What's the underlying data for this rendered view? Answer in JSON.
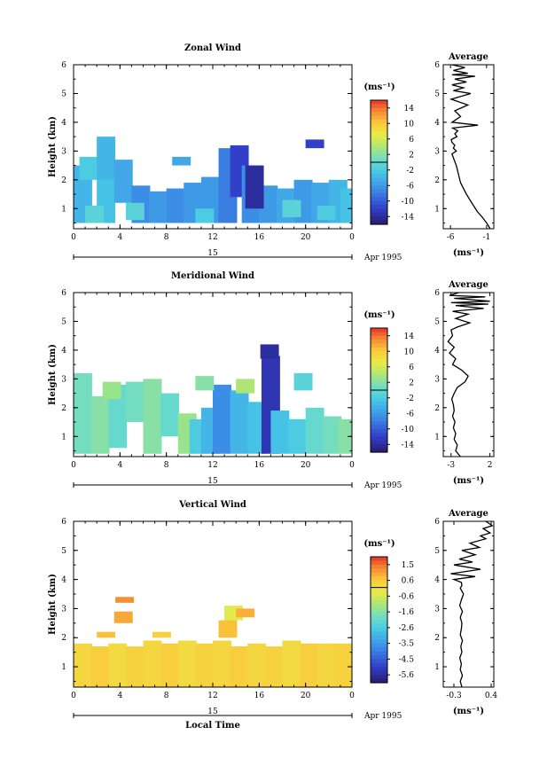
{
  "chart_data": [
    {
      "type": "heatmap",
      "title": "Zonal Wind",
      "ylabel": "Height (km)",
      "x_ticks": [
        "0",
        "4",
        "8",
        "12",
        "16",
        "20",
        "0"
      ],
      "y_ticks": [
        "1",
        "2",
        "3",
        "4",
        "5",
        "6"
      ],
      "xlim": [
        0,
        24
      ],
      "ylim": [
        0.3,
        6.0
      ],
      "date_label": "15",
      "date_suffix": "Apr 1995",
      "colorbar": {
        "unit": "(ms⁻¹)",
        "ticks": [
          "14",
          "10",
          "6",
          "2",
          "-2",
          "-6",
          "-10",
          "-14"
        ],
        "range": [
          -16,
          16
        ]
      },
      "cells": [
        [
          0,
          0.5,
          2.0,
          -4
        ],
        [
          2,
          0.5,
          1.8,
          -3
        ],
        [
          0.5,
          2.0,
          0.8,
          -2
        ],
        [
          2,
          2.0,
          1.5,
          -4
        ],
        [
          3.5,
          1.2,
          1.5,
          -5
        ],
        [
          5,
          0.5,
          1.3,
          -7
        ],
        [
          6.5,
          0.5,
          1.1,
          -6
        ],
        [
          8,
          0.5,
          1.2,
          -7
        ],
        [
          9.5,
          0.5,
          1.4,
          -6
        ],
        [
          11,
          0.5,
          1.6,
          -6
        ],
        [
          12.5,
          0.5,
          2.6,
          -8
        ],
        [
          13.5,
          1.4,
          1.8,
          -12
        ],
        [
          14.5,
          0.5,
          2.0,
          -7
        ],
        [
          16,
          0.5,
          1.3,
          -6
        ],
        [
          17.5,
          0.5,
          1.2,
          -5
        ],
        [
          19,
          0.5,
          1.5,
          -6
        ],
        [
          20.5,
          0.5,
          1.4,
          -5
        ],
        [
          22,
          0.5,
          1.5,
          -4
        ],
        [
          23,
          0.5,
          1.2,
          -3
        ],
        [
          1,
          0.5,
          0.6,
          -1
        ],
        [
          4.5,
          0.6,
          0.6,
          -1
        ],
        [
          10.5,
          0.5,
          0.5,
          -2
        ],
        [
          18,
          0.7,
          0.6,
          -1
        ],
        [
          21,
          0.6,
          0.5,
          -2
        ],
        [
          20,
          3.1,
          0.3,
          -12
        ],
        [
          8.5,
          2.5,
          0.3,
          -5
        ],
        [
          14.8,
          1.0,
          1.5,
          -14
        ]
      ],
      "profile": {
        "title": "Average",
        "xlabel": "(ms⁻¹)",
        "x_ticks": [
          "-6",
          "-1"
        ],
        "xlim": [
          -7,
          0
        ],
        "y_ticks": [
          "1",
          "2",
          "3",
          "4",
          "5",
          "6"
        ],
        "ylim": [
          0.3,
          6.0
        ],
        "x": [
          -0.5,
          -1.0,
          -1.6,
          -2.3,
          -2.8,
          -3.3,
          -3.8,
          -4.2,
          -4.6,
          -4.8,
          -5.0,
          -5.2,
          -5.5,
          -5.8,
          -5.2,
          -5.6,
          -5.4,
          -5.8,
          -5.9,
          -5.1,
          -5.4,
          -5.0,
          -5.7,
          -2.2,
          -5.8,
          -4.6,
          -5.4,
          -3.6,
          -5.9,
          -3.2,
          -5.6,
          -4.2,
          -5.8,
          -3.8,
          -5.4,
          -2.6,
          -5.8,
          -3.6,
          -5.6,
          -4.0,
          -5.8
        ],
        "y": [
          0.3,
          0.5,
          0.7,
          0.9,
          1.1,
          1.3,
          1.5,
          1.7,
          1.9,
          2.1,
          2.3,
          2.5,
          2.7,
          2.9,
          3.0,
          3.1,
          3.2,
          3.3,
          3.4,
          3.5,
          3.6,
          3.7,
          3.8,
          3.9,
          4.0,
          4.2,
          4.4,
          4.6,
          4.8,
          5.0,
          5.1,
          5.2,
          5.3,
          5.4,
          5.5,
          5.6,
          5.65,
          5.7,
          5.8,
          5.9,
          6.0
        ]
      }
    },
    {
      "type": "heatmap",
      "title": "Meridional Wind",
      "ylabel": "Height (km)",
      "x_ticks": [
        "0",
        "4",
        "8",
        "12",
        "16",
        "20",
        "0"
      ],
      "y_ticks": [
        "1",
        "2",
        "3",
        "4",
        "5",
        "6"
      ],
      "xlim": [
        0,
        24
      ],
      "ylim": [
        0.3,
        6.0
      ],
      "date_label": "15",
      "date_suffix": "Apr 1995",
      "colorbar": {
        "unit": "(ms⁻¹)",
        "ticks": [
          "14",
          "10",
          "6",
          "2",
          "-2",
          "-6",
          "-10",
          "-14"
        ],
        "range": [
          -16,
          16
        ]
      },
      "cells": [
        [
          0,
          0.4,
          2.8,
          1
        ],
        [
          1.5,
          0.4,
          2.0,
          2
        ],
        [
          3,
          0.6,
          2.2,
          0
        ],
        [
          4.5,
          1.5,
          1.4,
          1
        ],
        [
          6,
          0.4,
          2.6,
          2
        ],
        [
          7.5,
          1.0,
          1.5,
          0
        ],
        [
          9,
          0.4,
          1.4,
          3
        ],
        [
          10,
          0.4,
          1.2,
          -2
        ],
        [
          11,
          0.4,
          1.6,
          -4
        ],
        [
          12,
          0.4,
          2.4,
          -7
        ],
        [
          13.5,
          0.4,
          2.2,
          -4
        ],
        [
          15,
          0.4,
          1.8,
          -3
        ],
        [
          16.2,
          0.4,
          3.4,
          -13
        ],
        [
          17,
          0.4,
          1.5,
          -3
        ],
        [
          18.5,
          0.4,
          1.2,
          -2
        ],
        [
          20,
          0.4,
          1.6,
          0
        ],
        [
          21.5,
          0.4,
          1.3,
          1
        ],
        [
          22.8,
          0.4,
          1.2,
          2
        ],
        [
          2.5,
          2.3,
          0.6,
          3
        ],
        [
          10.5,
          2.6,
          0.5,
          2
        ],
        [
          14,
          2.5,
          0.5,
          4
        ],
        [
          19,
          2.6,
          0.6,
          -1
        ],
        [
          16.1,
          3.7,
          0.5,
          -14
        ]
      ],
      "profile": {
        "title": "Average",
        "xlabel": "(ms⁻¹)",
        "x_ticks": [
          "-3",
          "2"
        ],
        "xlim": [
          -4,
          2.5
        ],
        "y_ticks": [
          "1",
          "2",
          "3",
          "4",
          "5",
          "6"
        ],
        "ylim": [
          0.3,
          6.0
        ],
        "x": [
          -1.8,
          -2.4,
          -2.2,
          -2.6,
          -2.4,
          -2.7,
          -2.5,
          -2.8,
          -2.6,
          -2.7,
          -2.9,
          -2.6,
          -2.2,
          -1.2,
          -0.8,
          -1.6,
          -2.8,
          -2.4,
          -3.2,
          -2.6,
          -3.4,
          -2.8,
          -3.0,
          -2.2,
          -0.6,
          -2.4,
          -0.8,
          -2.8,
          1.2,
          -2.4,
          1.8,
          -3.0,
          2.0,
          -2.6,
          1.4,
          -3.2,
          -2.0
        ],
        "y": [
          0.3,
          0.5,
          0.7,
          0.9,
          1.1,
          1.3,
          1.5,
          1.7,
          1.9,
          2.1,
          2.3,
          2.5,
          2.7,
          2.9,
          3.1,
          3.3,
          3.5,
          3.7,
          3.9,
          4.1,
          4.3,
          4.5,
          4.7,
          4.8,
          4.95,
          5.1,
          5.25,
          5.35,
          5.45,
          5.55,
          5.6,
          5.65,
          5.7,
          5.8,
          5.85,
          5.9,
          6.0
        ]
      }
    },
    {
      "type": "heatmap",
      "title": "Vertical Wind",
      "ylabel": "Height (km)",
      "xlabel": "Local Time",
      "x_ticks": [
        "0",
        "4",
        "8",
        "12",
        "16",
        "20",
        "0"
      ],
      "y_ticks": [
        "1",
        "2",
        "3",
        "4",
        "5",
        "6"
      ],
      "xlim": [
        0,
        24
      ],
      "ylim": [
        0.3,
        6.0
      ],
      "date_label": "15",
      "date_suffix": "Apr 1995",
      "colorbar": {
        "unit": "(ms⁻¹)",
        "ticks": [
          "1.5",
          "0.6",
          "-0.6",
          "-1.6",
          "-2.6",
          "-3.5",
          "-4.5",
          "-5.6"
        ],
        "range": [
          -6.2,
          2.0
        ]
      },
      "cells": [
        [
          0,
          0.3,
          1.5,
          0.2
        ],
        [
          1.5,
          0.3,
          1.4,
          0.4
        ],
        [
          3,
          0.3,
          1.5,
          0.1
        ],
        [
          4.5,
          0.3,
          1.4,
          0.3
        ],
        [
          6,
          0.3,
          1.6,
          0.2
        ],
        [
          7.5,
          0.3,
          1.5,
          0.4
        ],
        [
          9,
          0.3,
          1.6,
          0.1
        ],
        [
          10.5,
          0.3,
          1.5,
          0.3
        ],
        [
          12,
          0.3,
          1.6,
          0.2
        ],
        [
          13.5,
          0.3,
          1.4,
          0.4
        ],
        [
          15,
          0.3,
          1.5,
          0.2
        ],
        [
          16.5,
          0.3,
          1.4,
          0.3
        ],
        [
          18,
          0.3,
          1.6,
          0.1
        ],
        [
          19.5,
          0.3,
          1.5,
          0.4
        ],
        [
          21,
          0.3,
          1.5,
          0.2
        ],
        [
          22.5,
          0.3,
          1.5,
          0.3
        ],
        [
          3.5,
          2.5,
          0.4,
          0.9
        ],
        [
          3.6,
          3.2,
          0.2,
          1.2
        ],
        [
          12.5,
          2.0,
          0.6,
          0.6
        ],
        [
          13,
          2.6,
          0.5,
          -0.4
        ],
        [
          14,
          2.7,
          0.3,
          0.8
        ],
        [
          2,
          2.0,
          0.2,
          0.6
        ],
        [
          6.8,
          2.0,
          0.2,
          0.3
        ]
      ],
      "profile": {
        "title": "Average",
        "xlabel": "(ms⁻¹)",
        "x_ticks": [
          "-0.3",
          "0.4"
        ],
        "xlim": [
          -0.5,
          0.45
        ],
        "y_ticks": [
          "1",
          "2",
          "3",
          "4",
          "5",
          "6"
        ],
        "ylim": [
          0.3,
          6.0
        ],
        "x": [
          -0.15,
          -0.18,
          -0.14,
          -0.18,
          -0.16,
          -0.19,
          -0.15,
          -0.17,
          -0.14,
          -0.18,
          -0.16,
          -0.15,
          -0.18,
          -0.14,
          -0.19,
          -0.16,
          -0.12,
          -0.18,
          -0.15,
          -0.16,
          -0.3,
          0.1,
          -0.36,
          0.2,
          -0.3,
          0.05,
          -0.2,
          0.1,
          -0.15,
          0.18,
          0.0,
          0.3,
          0.2,
          0.38,
          0.25,
          0.42,
          0.3
        ],
        "y": [
          0.3,
          0.5,
          0.7,
          0.9,
          1.1,
          1.3,
          1.5,
          1.7,
          1.9,
          2.1,
          2.3,
          2.5,
          2.7,
          2.9,
          3.1,
          3.3,
          3.5,
          3.7,
          3.8,
          3.9,
          4.0,
          4.1,
          4.2,
          4.35,
          4.5,
          4.6,
          4.7,
          4.85,
          5.0,
          5.1,
          5.25,
          5.4,
          5.5,
          5.6,
          5.75,
          5.85,
          6.0
        ]
      }
    }
  ]
}
